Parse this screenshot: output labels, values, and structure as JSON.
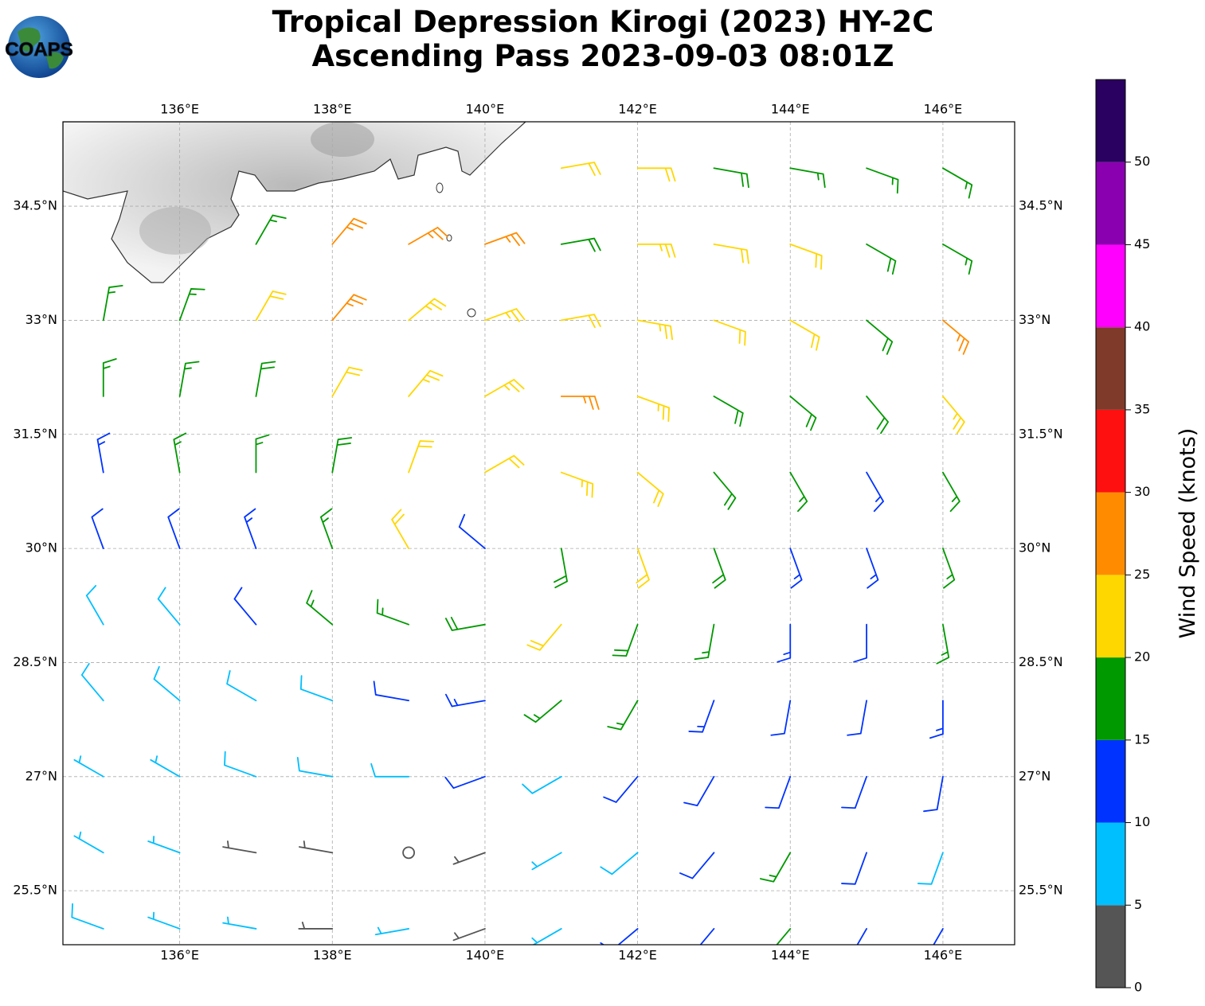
{
  "logo": "COAPS",
  "chart_data": {
    "type": "barbs",
    "title": [
      "Tropical Depression Kirogi (2023) HY-2C",
      "Ascending Pass 2023-09-03 08:01Z"
    ],
    "xlim": [
      134.47,
      146.94
    ],
    "ylim": [
      24.79,
      35.61
    ],
    "xticks": [
      {
        "value": 136,
        "label": "136°E"
      },
      {
        "value": 138,
        "label": "138°E"
      },
      {
        "value": 140,
        "label": "140°E"
      },
      {
        "value": 142,
        "label": "142°E"
      },
      {
        "value": 144,
        "label": "144°E"
      },
      {
        "value": 146,
        "label": "146°E"
      }
    ],
    "yticks": [
      {
        "value": 25.5,
        "label": "25.5°N"
      },
      {
        "value": 27,
        "label": "27°N"
      },
      {
        "value": 28.5,
        "label": "28.5°N"
      },
      {
        "value": 30,
        "label": "30°N"
      },
      {
        "value": 31.5,
        "label": "31.5°N"
      },
      {
        "value": 33,
        "label": "33°N"
      },
      {
        "value": 34.5,
        "label": "34.5°N"
      }
    ],
    "grid": true,
    "wind": {
      "lons": [
        135,
        136,
        137,
        138,
        139,
        140,
        141,
        142,
        143,
        144,
        145,
        146
      ],
      "lats": [
        35,
        34,
        33,
        32,
        31,
        30,
        29,
        28,
        27,
        26,
        25
      ],
      "speed": [
        [
          null,
          null,
          null,
          null,
          null,
          null,
          22,
          21,
          18,
          17,
          16,
          15
        ],
        [
          null,
          null,
          17,
          26,
          25,
          26,
          18,
          23,
          22,
          22,
          18,
          17
        ],
        [
          16,
          17,
          21,
          26,
          24,
          23,
          22,
          23,
          22,
          21,
          19,
          26
        ],
        [
          16,
          17,
          19,
          21,
          23,
          24,
          25,
          23,
          19,
          18,
          18,
          23
        ],
        [
          13,
          15,
          17,
          19,
          22,
          22,
          23,
          21,
          18,
          16,
          14,
          17
        ],
        [
          12,
          12,
          13,
          17,
          21,
          12,
          19,
          21,
          18,
          14,
          13,
          16
        ],
        [
          9,
          9,
          11,
          16,
          17,
          19,
          21,
          19,
          16,
          13,
          12,
          15
        ],
        [
          8,
          8,
          9,
          9,
          12,
          14,
          16,
          15,
          13,
          12,
          12,
          13
        ],
        [
          7,
          7,
          8,
          8,
          9,
          11,
          9,
          11,
          12,
          12,
          11,
          11
        ],
        [
          7,
          7,
          4,
          3,
          2,
          3,
          7,
          8,
          11,
          15,
          12,
          9
        ],
        [
          8,
          7,
          7,
          4,
          6,
          4,
          7,
          11,
          12,
          16,
          12,
          11
        ]
      ],
      "direction": [
        [
          30,
          30,
          40,
          50,
          60,
          70,
          80,
          90,
          100,
          100,
          110,
          120
        ],
        [
          20,
          30,
          30,
          40,
          60,
          70,
          80,
          90,
          100,
          110,
          120,
          120
        ],
        [
          10,
          20,
          30,
          40,
          50,
          70,
          80,
          100,
          110,
          120,
          130,
          130
        ],
        [
          0,
          10,
          10,
          30,
          40,
          60,
          90,
          110,
          120,
          130,
          140,
          140
        ],
        [
          350,
          350,
          360,
          10,
          20,
          60,
          110,
          130,
          140,
          150,
          150,
          150
        ],
        [
          340,
          340,
          340,
          340,
          330,
          310,
          170,
          160,
          160,
          160,
          160,
          160
        ],
        [
          330,
          320,
          320,
          310,
          290,
          260,
          220,
          200,
          190,
          180,
          180,
          170
        ],
        [
          320,
          310,
          300,
          290,
          280,
          260,
          230,
          210,
          200,
          190,
          190,
          180
        ],
        [
          300,
          300,
          290,
          280,
          270,
          250,
          240,
          220,
          210,
          200,
          200,
          190
        ],
        [
          300,
          290,
          280,
          280,
          260,
          250,
          240,
          230,
          220,
          210,
          200,
          200
        ],
        [
          290,
          290,
          280,
          270,
          260,
          250,
          240,
          230,
          220,
          220,
          210,
          210
        ]
      ]
    },
    "colorbar": {
      "label": "Wind Speed (knots)",
      "lim": [
        0,
        55
      ],
      "levels": [
        0,
        5,
        10,
        15,
        20,
        25,
        30,
        35,
        40,
        45,
        50,
        55
      ],
      "colors": [
        "#555555",
        "#00bfff",
        "#0033ff",
        "#009900",
        "#ffd700",
        "#ff8c00",
        "#ff1010",
        "#7f3a2a",
        "#ff00ff",
        "#8a00b0",
        "#2a0060"
      ],
      "ticks": [
        0,
        5,
        10,
        15,
        20,
        25,
        30,
        35,
        40,
        45,
        50
      ]
    }
  }
}
